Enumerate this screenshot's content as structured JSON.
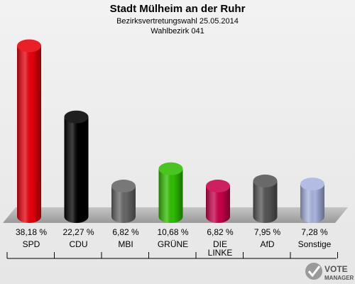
{
  "chart_data": {
    "type": "bar",
    "title": "Stadt Mülheim an der Ruhr",
    "subtitle": "Bezirksvertretungswahl 25.05.2014",
    "subtitle2": "Wahlbezirk 041",
    "categories": [
      "SPD",
      "CDU",
      "MBI",
      "GRÜNE",
      "DIE LINKE",
      "AfD",
      "Sonstige"
    ],
    "category_lines": [
      [
        "SPD"
      ],
      [
        "CDU"
      ],
      [
        "MBI"
      ],
      [
        "GRÜNE"
      ],
      [
        "DIE",
        "LINKE"
      ],
      [
        "AfD"
      ],
      [
        "Sonstige"
      ]
    ],
    "values": [
      38.18,
      22.27,
      6.82,
      10.68,
      6.82,
      7.95,
      7.28
    ],
    "value_labels": [
      "38,18 %",
      "22,27 %",
      "6,82 %",
      "10,68 %",
      "6,82 %",
      "7,95 %",
      "7,28 %"
    ],
    "colors": [
      "#e8000b",
      "#000000",
      "#666666",
      "#2fbf00",
      "#c8004b",
      "#555555",
      "#a9b4e0"
    ],
    "xlabel": "",
    "ylabel": "",
    "grid": false,
    "legend": "none"
  },
  "logo": {
    "line1": "VOTE",
    "line2": "MANAGER"
  }
}
